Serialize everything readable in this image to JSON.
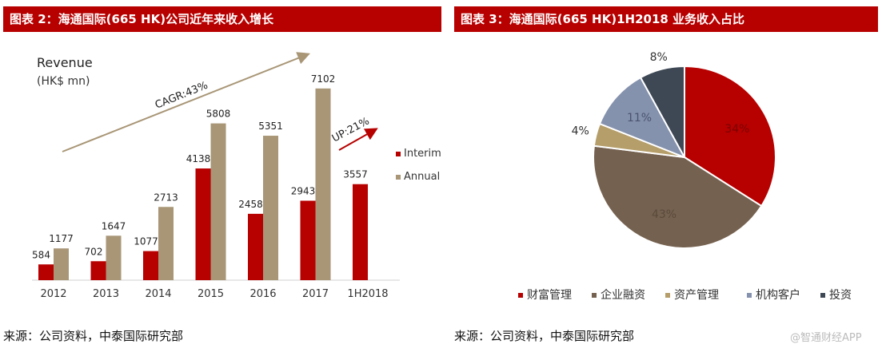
{
  "left": {
    "header": "图表 2：海通国际(665 HK)公司近年来收入增长",
    "source": "来源：公司资料，中泰国际研究部"
  },
  "right": {
    "header": "图表 3：海通国际(665 HK)1H2018 业务收入占比",
    "source": "来源：公司资料，中泰国际研究部",
    "watermark": "@智通财经APP"
  },
  "chart_data": [
    {
      "type": "bar",
      "title": "Revenue",
      "ylabel": "(HK$ mn)",
      "categories": [
        "2012",
        "2013",
        "2014",
        "2015",
        "2016",
        "2017",
        "1H2018"
      ],
      "series": [
        {
          "name": "Interim",
          "color": "#b70000",
          "values": [
            584,
            702,
            1077,
            4138,
            2458,
            2943,
            3557
          ]
        },
        {
          "name": "Annual",
          "color": "#a89676",
          "values": [
            1177,
            1647,
            2713,
            5808,
            5351,
            7102,
            null
          ]
        }
      ],
      "ylim": [
        0,
        7600
      ],
      "legend_position": "right",
      "annotations": [
        {
          "text": "CAGR:43%",
          "color": "#222",
          "arrow_color": "#a89676"
        },
        {
          "text": "UP:21%",
          "color": "#222",
          "arrow_color": "#b70000"
        }
      ]
    },
    {
      "type": "pie",
      "labels": [
        "财富管理",
        "企业融资",
        "资产管理",
        "机构客户",
        "投资"
      ],
      "values": [
        34,
        43,
        4,
        11,
        8
      ],
      "display": [
        "34%",
        "43%",
        "4%",
        "11%",
        "8%"
      ],
      "colors": [
        "#b70000",
        "#75614f",
        "#b59e6a",
        "#8592ad",
        "#3e4855"
      ],
      "legend_position": "bottom"
    }
  ]
}
